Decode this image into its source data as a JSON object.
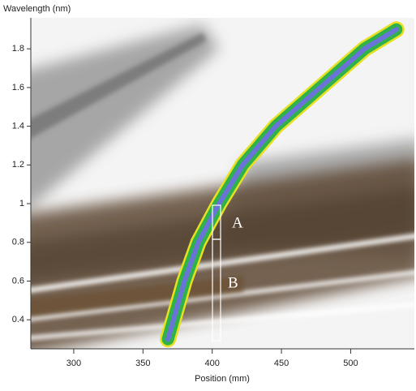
{
  "chart_data": {
    "type": "line",
    "ylabel": "Wavelength (nm)",
    "xlabel": "Position (mm)",
    "x": [
      368,
      372,
      380,
      390,
      405,
      422,
      446,
      478,
      510,
      533
    ],
    "values": [
      0.3,
      0.4,
      0.6,
      0.8,
      1.0,
      1.2,
      1.4,
      1.6,
      1.8,
      1.9
    ],
    "color": "#2fb24a",
    "xlim": [
      269,
      546
    ],
    "ylim": [
      0.25,
      1.96
    ],
    "xticks": [
      300,
      350,
      400,
      450,
      500
    ],
    "yticks": [
      0.4,
      0.6,
      0.8,
      1.0,
      1.2,
      1.4,
      1.6,
      1.8
    ],
    "annotations": [
      "A",
      "B"
    ]
  }
}
